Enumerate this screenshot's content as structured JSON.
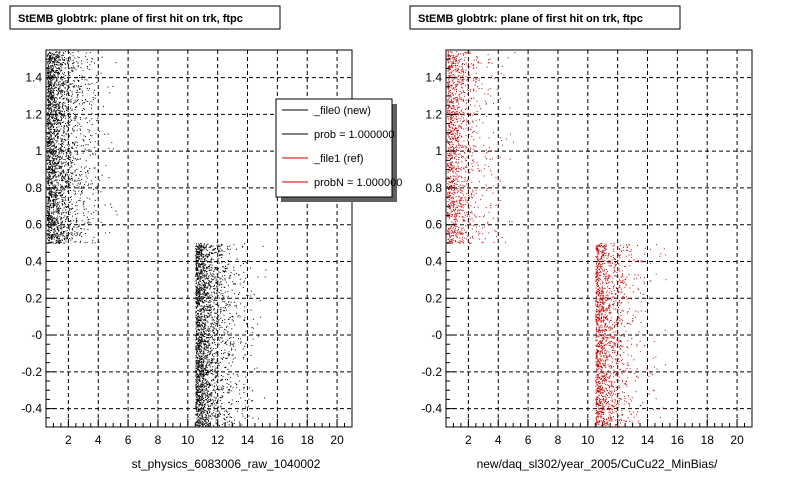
{
  "chart_data": [
    {
      "type": "scatter",
      "title": "StEMB globtrk: plane of first hit on trk, ftpc",
      "xlabel": "st_physics_6083006_raw_1040002",
      "ylabel": "",
      "xlim": [
        0.5,
        21
      ],
      "ylim": [
        -0.5,
        1.55
      ],
      "grid": true,
      "xticks": [
        2,
        4,
        6,
        8,
        10,
        12,
        14,
        16,
        18,
        20
      ],
      "yticks": [
        -0.4,
        -0.2,
        0,
        0.2,
        0.4,
        0.6,
        0.8,
        1.0,
        1.2,
        1.4
      ],
      "ytick_labels": [
        "-0.4",
        "-0.2",
        "-0",
        "0.2",
        "0.4",
        "0.6",
        "0.8",
        "1",
        "1.2",
        "1.4"
      ],
      "xtick_labels": [
        "2",
        "4",
        "6",
        "8",
        "10",
        "12",
        "14",
        "16",
        "18",
        "20"
      ],
      "series": [
        {
          "color": "#000000",
          "clusters": [
            {
              "x_range": [
                0.5,
                6.5
              ],
              "y_range": [
                0.5,
                1.55
              ],
              "density_peak_x": 1.0,
              "points": 2600
            },
            {
              "x_range": [
                10.5,
                16.5
              ],
              "y_range": [
                -0.5,
                0.5
              ],
              "density_peak_x": 11.0,
              "points": 2400
            }
          ]
        }
      ],
      "legend": {
        "placement": "top-right",
        "entries": [
          {
            "label": "_file0 (new)",
            "color": "#000000"
          },
          {
            "label": "prob = 1.000000",
            "color": "#000000"
          },
          {
            "label": "_file1 (ref)",
            "color": "#cc0000"
          },
          {
            "label": "probN = 1.000000",
            "color": "#cc0000"
          }
        ]
      }
    },
    {
      "type": "scatter",
      "title": "StEMB globtrk: plane of first hit on trk, ftpc",
      "xlabel": "new/daq_sl302/year_2005/CuCu22_MinBias/",
      "ylabel": "",
      "xlim": [
        0.5,
        21
      ],
      "ylim": [
        -0.5,
        1.55
      ],
      "grid": true,
      "xticks": [
        2,
        4,
        6,
        8,
        10,
        12,
        14,
        16,
        18,
        20
      ],
      "yticks": [
        -0.4,
        -0.2,
        0,
        0.2,
        0.4,
        0.6,
        0.8,
        1.0,
        1.2,
        1.4
      ],
      "ytick_labels": [
        "-0.4",
        "-0.2",
        "-0",
        "0.2",
        "0.4",
        "0.6",
        "0.8",
        "1",
        "1.2",
        "1.4"
      ],
      "xtick_labels": [
        "2",
        "4",
        "6",
        "8",
        "10",
        "12",
        "14",
        "16",
        "18",
        "20"
      ],
      "series": [
        {
          "color": "#cc0000",
          "clusters": [
            {
              "x_range": [
                0.5,
                6.5
              ],
              "y_range": [
                0.5,
                1.55
              ],
              "density_peak_x": 1.0,
              "points": 1400
            },
            {
              "x_range": [
                10.5,
                16.5
              ],
              "y_range": [
                -0.5,
                0.5
              ],
              "density_peak_x": 11.0,
              "points": 1600
            }
          ]
        }
      ]
    }
  ]
}
